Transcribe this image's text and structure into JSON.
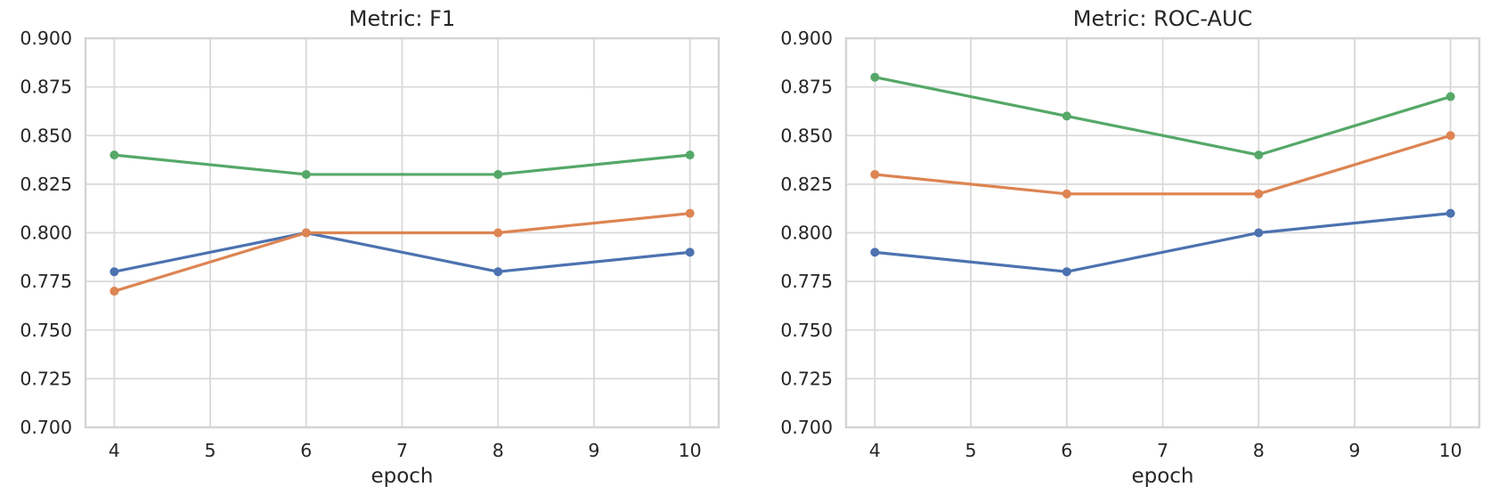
{
  "figure": {
    "background_color": "#ffffff",
    "text_color": "#262626",
    "grid_color": "#d9d9d9",
    "spine_color": "#d4d4d4"
  },
  "chart_data": [
    {
      "type": "line",
      "title": "Metric: F1",
      "xlabel": "epoch",
      "ylabel": "",
      "x": [
        4,
        6,
        8,
        10
      ],
      "xticks": [
        "4",
        "5",
        "6",
        "7",
        "8",
        "9",
        "10"
      ],
      "xtick_values": [
        4,
        5,
        6,
        7,
        8,
        9,
        10
      ],
      "ytick_labels": [
        "0.900",
        "0.875",
        "0.850",
        "0.825",
        "0.800",
        "0.775",
        "0.750",
        "0.725",
        "0.700"
      ],
      "xlim": [
        3.7,
        10.3
      ],
      "ylim": [
        0.7,
        0.9
      ],
      "grid": true,
      "legend": "none",
      "marker": "circle",
      "series": [
        {
          "name": "blue-series",
          "color": "#4C72B0",
          "values": [
            0.78,
            0.8,
            0.78,
            0.79
          ]
        },
        {
          "name": "orange-series",
          "color": "#DD8452",
          "values": [
            0.77,
            0.8,
            0.8,
            0.81
          ]
        },
        {
          "name": "green-series",
          "color": "#55A868",
          "values": [
            0.84,
            0.83,
            0.83,
            0.84
          ]
        }
      ]
    },
    {
      "type": "line",
      "title": "Metric: ROC-AUC",
      "xlabel": "epoch",
      "ylabel": "",
      "x": [
        4,
        6,
        8,
        10
      ],
      "xticks": [
        "4",
        "5",
        "6",
        "7",
        "8",
        "9",
        "10"
      ],
      "xtick_values": [
        4,
        5,
        6,
        7,
        8,
        9,
        10
      ],
      "ytick_labels": [
        "0.900",
        "0.875",
        "0.850",
        "0.825",
        "0.800",
        "0.775",
        "0.750",
        "0.725",
        "0.700"
      ],
      "xlim": [
        3.7,
        10.3
      ],
      "ylim": [
        0.7,
        0.9
      ],
      "grid": true,
      "legend": "none",
      "marker": "circle",
      "series": [
        {
          "name": "blue-series",
          "color": "#4C72B0",
          "values": [
            0.79,
            0.78,
            0.8,
            0.81
          ]
        },
        {
          "name": "orange-series",
          "color": "#DD8452",
          "values": [
            0.83,
            0.82,
            0.82,
            0.85
          ]
        },
        {
          "name": "green-series",
          "color": "#55A868",
          "values": [
            0.88,
            0.86,
            0.84,
            0.87
          ]
        }
      ]
    }
  ]
}
